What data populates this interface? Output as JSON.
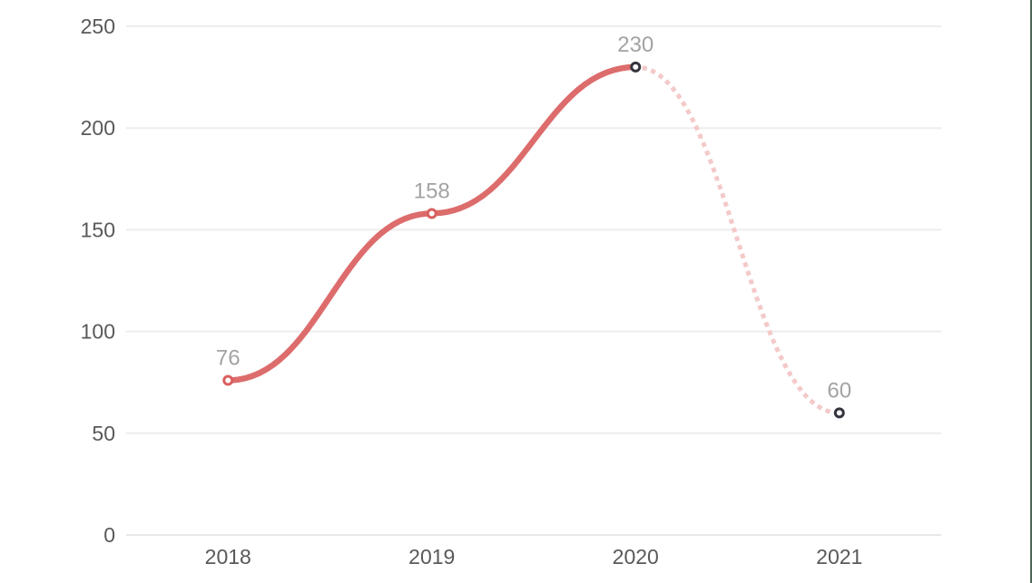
{
  "chart_data": {
    "type": "line",
    "title": "",
    "xlabel": "",
    "ylabel": "",
    "categories": [
      "2018",
      "2019",
      "2020",
      "2021"
    ],
    "values": [
      76,
      158,
      230,
      60
    ],
    "data_labels": [
      "76",
      "158",
      "230",
      "60"
    ],
    "ylim": [
      0,
      250
    ],
    "yticks": [
      0,
      50,
      100,
      150,
      200,
      250
    ],
    "grid": "horizontal-only",
    "legend": "none",
    "series": [
      {
        "name": "solid-actual",
        "point_indexes": [
          0,
          1,
          2
        ],
        "style": "solid"
      },
      {
        "name": "dotted-projection",
        "point_indexes": [
          2,
          3
        ],
        "style": "dotted"
      }
    ],
    "colors": {
      "line": "#dd6c6c",
      "projected_line": "#f4c9c9",
      "grid": "#ededed",
      "baseline": "#e7e7e7",
      "axis_label": "#595959",
      "data_label": "#a3a3a3",
      "marker_fill": "#ffffff",
      "marker_strokes": [
        "#d96060",
        "#d96060",
        "#34343e",
        "#34343e"
      ],
      "right_edge": "#4e6456",
      "background": "#ffffff"
    }
  }
}
